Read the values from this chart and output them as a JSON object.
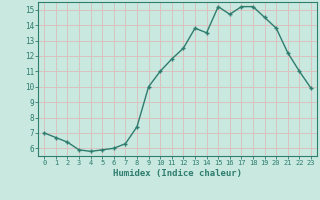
{
  "x": [
    0,
    1,
    2,
    3,
    4,
    5,
    6,
    7,
    8,
    9,
    10,
    11,
    12,
    13,
    14,
    15,
    16,
    17,
    18,
    19,
    20,
    21,
    22,
    23
  ],
  "y": [
    7.0,
    6.7,
    6.4,
    5.9,
    5.8,
    5.9,
    6.0,
    6.3,
    7.4,
    10.0,
    11.0,
    11.8,
    12.5,
    13.8,
    13.5,
    15.2,
    14.7,
    15.2,
    15.2,
    14.5,
    13.8,
    12.2,
    11.0,
    9.9
  ],
  "xlabel": "Humidex (Indice chaleur)",
  "xlim": [
    -0.5,
    23.5
  ],
  "ylim": [
    5.5,
    15.5
  ],
  "yticks": [
    6,
    7,
    8,
    9,
    10,
    11,
    12,
    13,
    14,
    15
  ],
  "xticks": [
    0,
    1,
    2,
    3,
    4,
    5,
    6,
    7,
    8,
    9,
    10,
    11,
    12,
    13,
    14,
    15,
    16,
    17,
    18,
    19,
    20,
    21,
    22,
    23
  ],
  "line_color": "#2e7d6e",
  "bg_color": "#c8e8e0",
  "grid_color": "#ddbcbc",
  "tick_color": "#2e7d6e",
  "label_color": "#2e7d6e"
}
